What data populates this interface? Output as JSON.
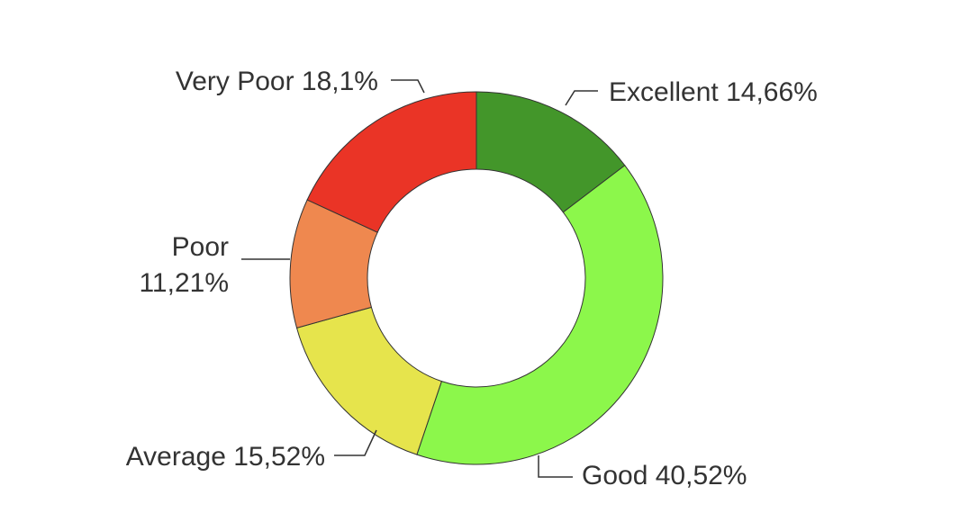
{
  "chart_data": {
    "type": "pie",
    "title": "",
    "categories": [
      "Excellent",
      "Good",
      "Average",
      "Poor",
      "Very Poor"
    ],
    "values": [
      14.66,
      40.52,
      15.52,
      11.21,
      18.1
    ],
    "value_labels": [
      "14,66%",
      "40,52%",
      "15,52%",
      "11,21%",
      "18,1%"
    ],
    "colors": [
      "#43962a",
      "#8cf74b",
      "#e6e44c",
      "#ef884f",
      "#ea3426"
    ],
    "donut": true,
    "legend": "none"
  }
}
